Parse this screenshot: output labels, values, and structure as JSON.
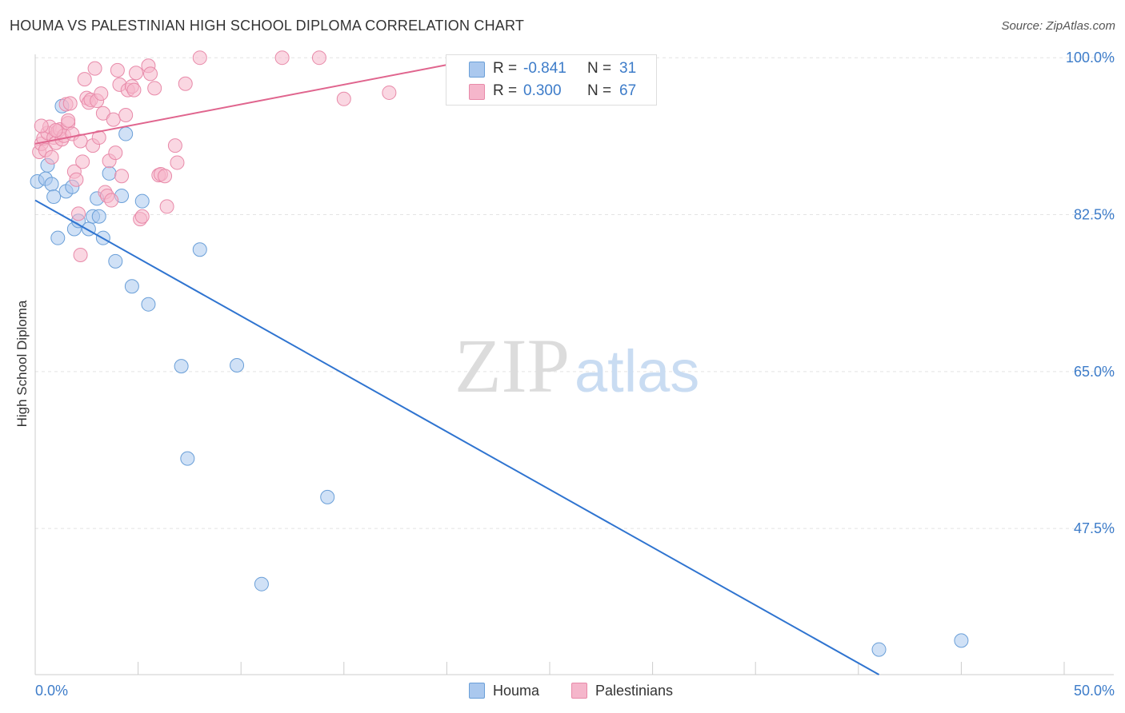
{
  "header": {
    "title": "HOUMA VS PALESTINIAN HIGH SCHOOL DIPLOMA CORRELATION CHART",
    "source": "Source: ZipAtlas.com"
  },
  "watermark": {
    "zip": "ZIP",
    "atlas": "atlas"
  },
  "legend_top": {
    "rows": [
      {
        "r_label": "R =",
        "r_value": "-0.841",
        "n_label": "N =",
        "n_value": "31",
        "color": "#aac8ee"
      },
      {
        "r_label": "R =",
        "r_value": "0.300",
        "n_label": "N =",
        "n_value": "67",
        "color": "#f5b6cb"
      }
    ]
  },
  "legend_bottom": {
    "items": [
      {
        "label": "Houma",
        "color": "#aac8ee"
      },
      {
        "label": "Palestinians",
        "color": "#f5b6cb"
      }
    ]
  },
  "chart_data": {
    "type": "scatter",
    "title": "HOUMA VS PALESTINIAN HIGH SCHOOL DIPLOMA CORRELATION CHART",
    "xlabel": "",
    "ylabel": "High School Diploma",
    "xlim": [
      0,
      50
    ],
    "ylim": [
      31.2,
      101.8
    ],
    "x_tick_labels": [
      {
        "value": 0,
        "label": "0.0%"
      },
      {
        "value": 50,
        "label": "50.0%"
      }
    ],
    "y_tick_labels": [
      {
        "value": 100,
        "label": "100.0%"
      },
      {
        "value": 82.5,
        "label": "82.5%"
      },
      {
        "value": 65,
        "label": "65.0%"
      },
      {
        "value": 47.5,
        "label": "47.5%"
      }
    ],
    "grid": true,
    "series": [
      {
        "name": "Houma",
        "color": "#aac8ee",
        "stroke": "#6a9fd8",
        "trend_color": "#2f74d0",
        "trend": {
          "x": [
            0,
            41.0
          ],
          "y": [
            84.1,
            31.2
          ]
        },
        "points": [
          [
            0.1,
            86.2
          ],
          [
            0.5,
            86.5
          ],
          [
            0.6,
            88.0
          ],
          [
            0.8,
            85.9
          ],
          [
            0.9,
            84.5
          ],
          [
            1.1,
            79.9
          ],
          [
            1.3,
            94.6
          ],
          [
            1.5,
            85.1
          ],
          [
            1.8,
            85.6
          ],
          [
            1.9,
            80.9
          ],
          [
            2.1,
            81.8
          ],
          [
            2.6,
            80.9
          ],
          [
            2.8,
            82.3
          ],
          [
            3.0,
            84.3
          ],
          [
            3.1,
            82.3
          ],
          [
            3.3,
            79.9
          ],
          [
            3.6,
            87.1
          ],
          [
            3.9,
            77.3
          ],
          [
            4.2,
            84.6
          ],
          [
            4.4,
            91.5
          ],
          [
            4.7,
            74.5
          ],
          [
            5.2,
            84.0
          ],
          [
            5.5,
            72.5
          ],
          [
            7.1,
            65.6
          ],
          [
            7.4,
            55.3
          ],
          [
            8.0,
            78.6
          ],
          [
            9.8,
            65.7
          ],
          [
            11.0,
            41.3
          ],
          [
            14.2,
            51.0
          ],
          [
            41.0,
            34.0
          ],
          [
            45.0,
            35.0
          ]
        ]
      },
      {
        "name": "Palestinians",
        "color": "#f5b6cb",
        "stroke": "#e88aa9",
        "trend_color": "#e0658e",
        "trend": {
          "x": [
            0,
            20.0
          ],
          "y": [
            90.4,
            99.2
          ]
        },
        "points": [
          [
            0.2,
            89.5
          ],
          [
            0.3,
            90.4
          ],
          [
            0.4,
            91.0
          ],
          [
            0.5,
            89.7
          ],
          [
            0.6,
            91.6
          ],
          [
            0.7,
            92.3
          ],
          [
            0.8,
            88.9
          ],
          [
            0.9,
            91.1
          ],
          [
            1.0,
            90.5
          ],
          [
            1.1,
            91.8
          ],
          [
            1.2,
            92.0
          ],
          [
            1.3,
            90.9
          ],
          [
            1.4,
            91.3
          ],
          [
            1.5,
            94.8
          ],
          [
            1.6,
            92.7
          ],
          [
            1.7,
            94.9
          ],
          [
            1.8,
            91.5
          ],
          [
            1.9,
            87.3
          ],
          [
            2.0,
            86.4
          ],
          [
            2.1,
            82.6
          ],
          [
            2.2,
            78.0
          ],
          [
            2.3,
            88.4
          ],
          [
            2.4,
            97.6
          ],
          [
            2.5,
            95.5
          ],
          [
            2.6,
            95.0
          ],
          [
            2.7,
            95.3
          ],
          [
            2.8,
            90.2
          ],
          [
            2.9,
            98.8
          ],
          [
            3.0,
            95.2
          ],
          [
            3.1,
            91.1
          ],
          [
            3.2,
            96.0
          ],
          [
            3.3,
            93.8
          ],
          [
            3.4,
            85.0
          ],
          [
            3.5,
            84.6
          ],
          [
            3.6,
            88.5
          ],
          [
            3.7,
            84.1
          ],
          [
            3.8,
            93.1
          ],
          [
            3.9,
            89.4
          ],
          [
            4.0,
            98.6
          ],
          [
            4.1,
            97.0
          ],
          [
            4.2,
            86.8
          ],
          [
            4.4,
            93.6
          ],
          [
            4.5,
            96.4
          ],
          [
            4.7,
            96.8
          ],
          [
            4.8,
            96.4
          ],
          [
            4.9,
            98.3
          ],
          [
            5.1,
            82.0
          ],
          [
            5.2,
            82.3
          ],
          [
            5.5,
            99.1
          ],
          [
            5.6,
            98.2
          ],
          [
            5.8,
            96.6
          ],
          [
            6.0,
            86.9
          ],
          [
            6.1,
            87.0
          ],
          [
            6.3,
            86.8
          ],
          [
            6.4,
            83.4
          ],
          [
            6.8,
            90.2
          ],
          [
            6.9,
            88.3
          ],
          [
            7.3,
            97.1
          ],
          [
            8.0,
            100.0
          ],
          [
            12.0,
            100.0
          ],
          [
            13.8,
            100.0
          ],
          [
            15.0,
            95.4
          ],
          [
            17.2,
            96.1
          ],
          [
            0.3,
            92.4
          ],
          [
            1.0,
            91.9
          ],
          [
            1.6,
            93.0
          ],
          [
            2.2,
            90.7
          ]
        ]
      }
    ]
  }
}
